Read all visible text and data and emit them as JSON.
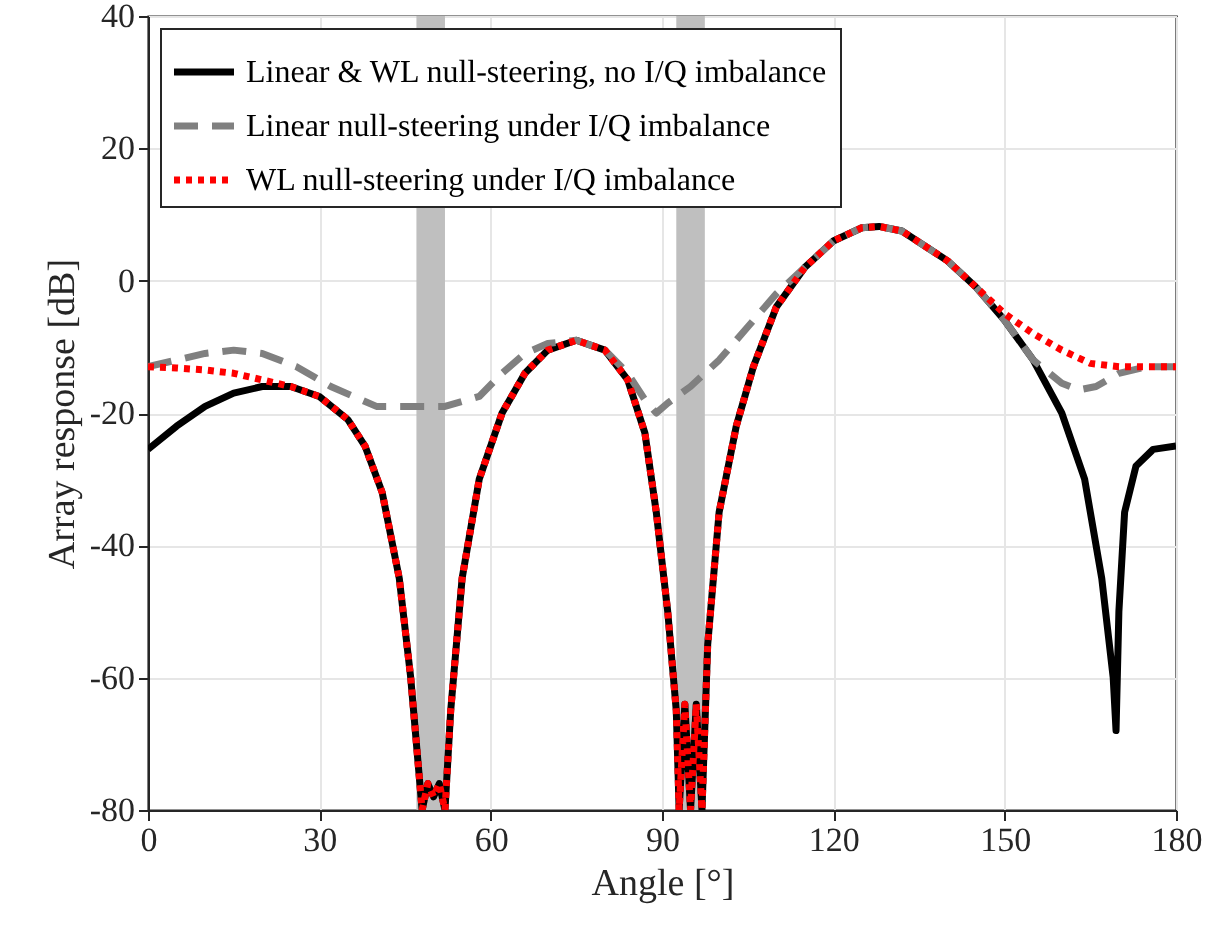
{
  "chart_data": {
    "type": "line",
    "xlabel": "Angle [°]",
    "ylabel": "Array response [dB]",
    "xlim": [
      0,
      180
    ],
    "xticks": [
      0,
      30,
      60,
      90,
      120,
      150,
      180
    ],
    "ylim": [
      -80,
      40
    ],
    "yticks": [
      -80,
      -60,
      -40,
      -20,
      0,
      20,
      40
    ],
    "grid": true,
    "legend": "top left",
    "bands": [
      {
        "axis": "x",
        "from": 47,
        "to": 52,
        "color": "#bfbfbf"
      },
      {
        "axis": "x",
        "from": 92.5,
        "to": 97.5,
        "color": "#bfbfbf"
      }
    ],
    "series": [
      {
        "name": "Linear & WL null-steering, no I/Q imbalance",
        "color": "#000000",
        "line_style": "solid",
        "x": [
          0,
          5,
          10,
          15,
          20,
          25,
          30,
          35,
          38,
          41,
          44,
          46,
          47.5,
          48,
          49,
          50,
          51,
          52,
          53,
          55,
          58,
          62,
          66,
          70,
          75,
          80,
          84,
          87,
          89,
          91,
          92.5,
          93,
          94,
          95,
          96,
          97,
          98,
          100,
          103,
          106,
          110,
          115,
          120,
          125,
          128,
          132,
          140,
          145,
          150,
          155,
          160,
          164,
          167,
          169,
          169.5,
          170,
          171,
          173,
          176,
          180
        ],
        "values": [
          -25.5,
          -22,
          -19,
          -17,
          -16,
          -16,
          -17.5,
          -21,
          -25,
          -32,
          -45,
          -60,
          -75,
          -80,
          -76,
          -78,
          -76,
          -80,
          -65,
          -45,
          -30,
          -20,
          -14,
          -10.5,
          -9,
          -10.5,
          -15,
          -23,
          -35,
          -50,
          -65,
          -80,
          -64,
          -80,
          -64,
          -80,
          -55,
          -35,
          -22,
          -13,
          -4,
          2,
          6,
          8,
          8.2,
          7.5,
          3,
          -1,
          -6,
          -12,
          -20,
          -30,
          -45,
          -60,
          -68,
          -50,
          -35,
          -28,
          -25.5,
          -25
        ]
      },
      {
        "name": "Linear null-steering under I/Q imbalance",
        "color": "#808080",
        "line_style": "dashed",
        "x": [
          0,
          5,
          10,
          15,
          20,
          26,
          32,
          40,
          48,
          52,
          58,
          62,
          66,
          70,
          75,
          80,
          84,
          87,
          89,
          91,
          95,
          100,
          105,
          110,
          115,
          120,
          125,
          128,
          132,
          140,
          145,
          150,
          155,
          160,
          163,
          166,
          170,
          175,
          180
        ],
        "values": [
          -13,
          -12,
          -11,
          -10.5,
          -11,
          -13,
          -16,
          -19,
          -19,
          -19,
          -17.5,
          -14,
          -11,
          -9.5,
          -9,
          -10.5,
          -14,
          -18,
          -20,
          -18.5,
          -16,
          -12,
          -7,
          -2,
          2,
          6,
          8,
          8.2,
          7.5,
          3,
          -1,
          -6,
          -12,
          -15.5,
          -16.5,
          -16,
          -14,
          -13,
          -13
        ]
      },
      {
        "name": "WL null-steering under I/Q imbalance",
        "color": "#ff0000",
        "line_style": "dotted",
        "x": [
          0,
          5,
          10,
          15,
          20,
          25,
          30,
          35,
          38,
          41,
          44,
          46,
          47.5,
          48,
          49,
          50,
          51,
          52,
          53,
          55,
          58,
          62,
          66,
          70,
          75,
          80,
          84,
          87,
          89,
          91,
          92.5,
          93,
          94,
          95,
          96,
          97,
          98,
          100,
          103,
          106,
          110,
          115,
          120,
          125,
          128,
          132,
          140,
          145,
          150,
          155,
          160,
          165,
          170,
          175,
          180
        ],
        "values": [
          -13,
          -13.2,
          -13.5,
          -14,
          -15,
          -16,
          -17.5,
          -21,
          -25,
          -32,
          -45,
          -60,
          -75,
          -80,
          -76,
          -78,
          -76,
          -80,
          -65,
          -45,
          -30,
          -20,
          -14,
          -10.5,
          -9,
          -10.5,
          -15,
          -23,
          -35,
          -50,
          -65,
          -80,
          -64,
          -80,
          -64,
          -80,
          -55,
          -35,
          -22,
          -13,
          -4,
          2,
          6,
          8,
          8.2,
          7.5,
          3,
          -1,
          -5,
          -8,
          -10.5,
          -12.5,
          -13,
          -13,
          -13
        ]
      }
    ]
  }
}
